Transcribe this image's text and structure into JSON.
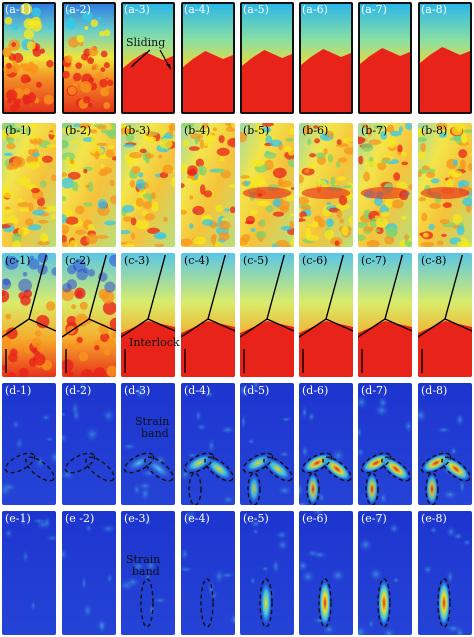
{
  "figure": {
    "rows": [
      {
        "id": "a",
        "style": "contour-red",
        "background": "#111111",
        "panels": [
          "(a-1)",
          "(a-2)",
          "(a-3)",
          "(a-4)",
          "(a-5)",
          "(a-6)",
          "(a-7)",
          "(a-8)"
        ]
      },
      {
        "id": "b",
        "style": "noisy",
        "background": "#ffffff",
        "panels": [
          "(b-1)",
          "(b-2)",
          "(b-3)",
          "(b-4)",
          "(b-5)",
          "(b-6)",
          "(b-7)",
          "(b-8)"
        ]
      },
      {
        "id": "c",
        "style": "contour-lines",
        "background": "#ffffff",
        "panels": [
          "(c-1)",
          "(c-2)",
          "(c-3)",
          "(c-4)",
          "(c-5)",
          "(c-6)",
          "(c-7)",
          "(c-8)"
        ]
      },
      {
        "id": "d",
        "style": "strain-band-pair",
        "background": "#ffffff",
        "panels": [
          "(d-1)",
          "(d-2)",
          "(d-3)",
          "(d-4)",
          "(d-5)",
          "(d-6)",
          "(d-7)",
          "(d-8)"
        ]
      },
      {
        "id": "e",
        "style": "strain-band-single",
        "background": "#ffffff",
        "panels": [
          "(e-1)",
          "(e -2)",
          "(e-3)",
          "(e-4)",
          "(e-5)",
          "(e-6)",
          "(e-7)",
          "(e-8)"
        ]
      }
    ],
    "annotations": {
      "sliding": "Sliding",
      "interlock": "Interlock",
      "strain_band_d": [
        "Strain",
        "band"
      ],
      "strain_band_e": [
        "Strain",
        "band"
      ]
    },
    "colors": {
      "red": "#e8231a",
      "orange": "#f7941d",
      "yellow": "#f7e81c",
      "cyan": "#35c8e9",
      "blue": "#2340d8",
      "deep_blue": "#1a2ec8"
    }
  }
}
